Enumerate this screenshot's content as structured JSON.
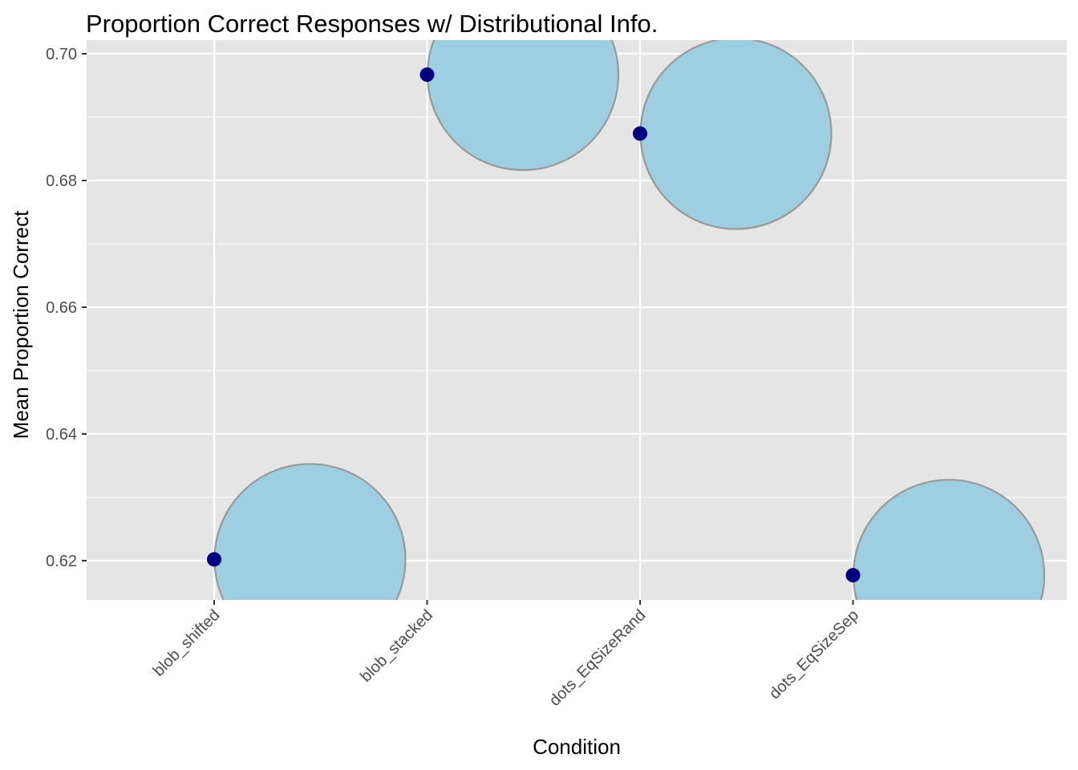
{
  "chart_data": {
    "type": "scatter",
    "title": "Proportion Correct Responses w/ Distributional Info.",
    "xlabel": "Condition",
    "ylabel": "Mean Proportion Correct",
    "categories": [
      "blob_shifted",
      "blob_stacked",
      "dots_EqSizeRand",
      "dots_EqSizeSep"
    ],
    "values": [
      0.6202,
      0.6967,
      0.6874,
      0.6177
    ],
    "ylim": [
      0.6135,
      0.7055
    ],
    "yticks": [
      0.62,
      0.64,
      0.66,
      0.68,
      0.7
    ],
    "ytick_labels": [
      "0.62",
      "0.64",
      "0.66",
      "0.68",
      "0.70"
    ],
    "grid": true,
    "legend": "none",
    "colors": {
      "panel_background": "#e5e5e5",
      "gridline": "#ffffff",
      "point": "#00007f",
      "distribution_fill": "#9ecfe0",
      "distribution_stroke": "#999999"
    }
  }
}
